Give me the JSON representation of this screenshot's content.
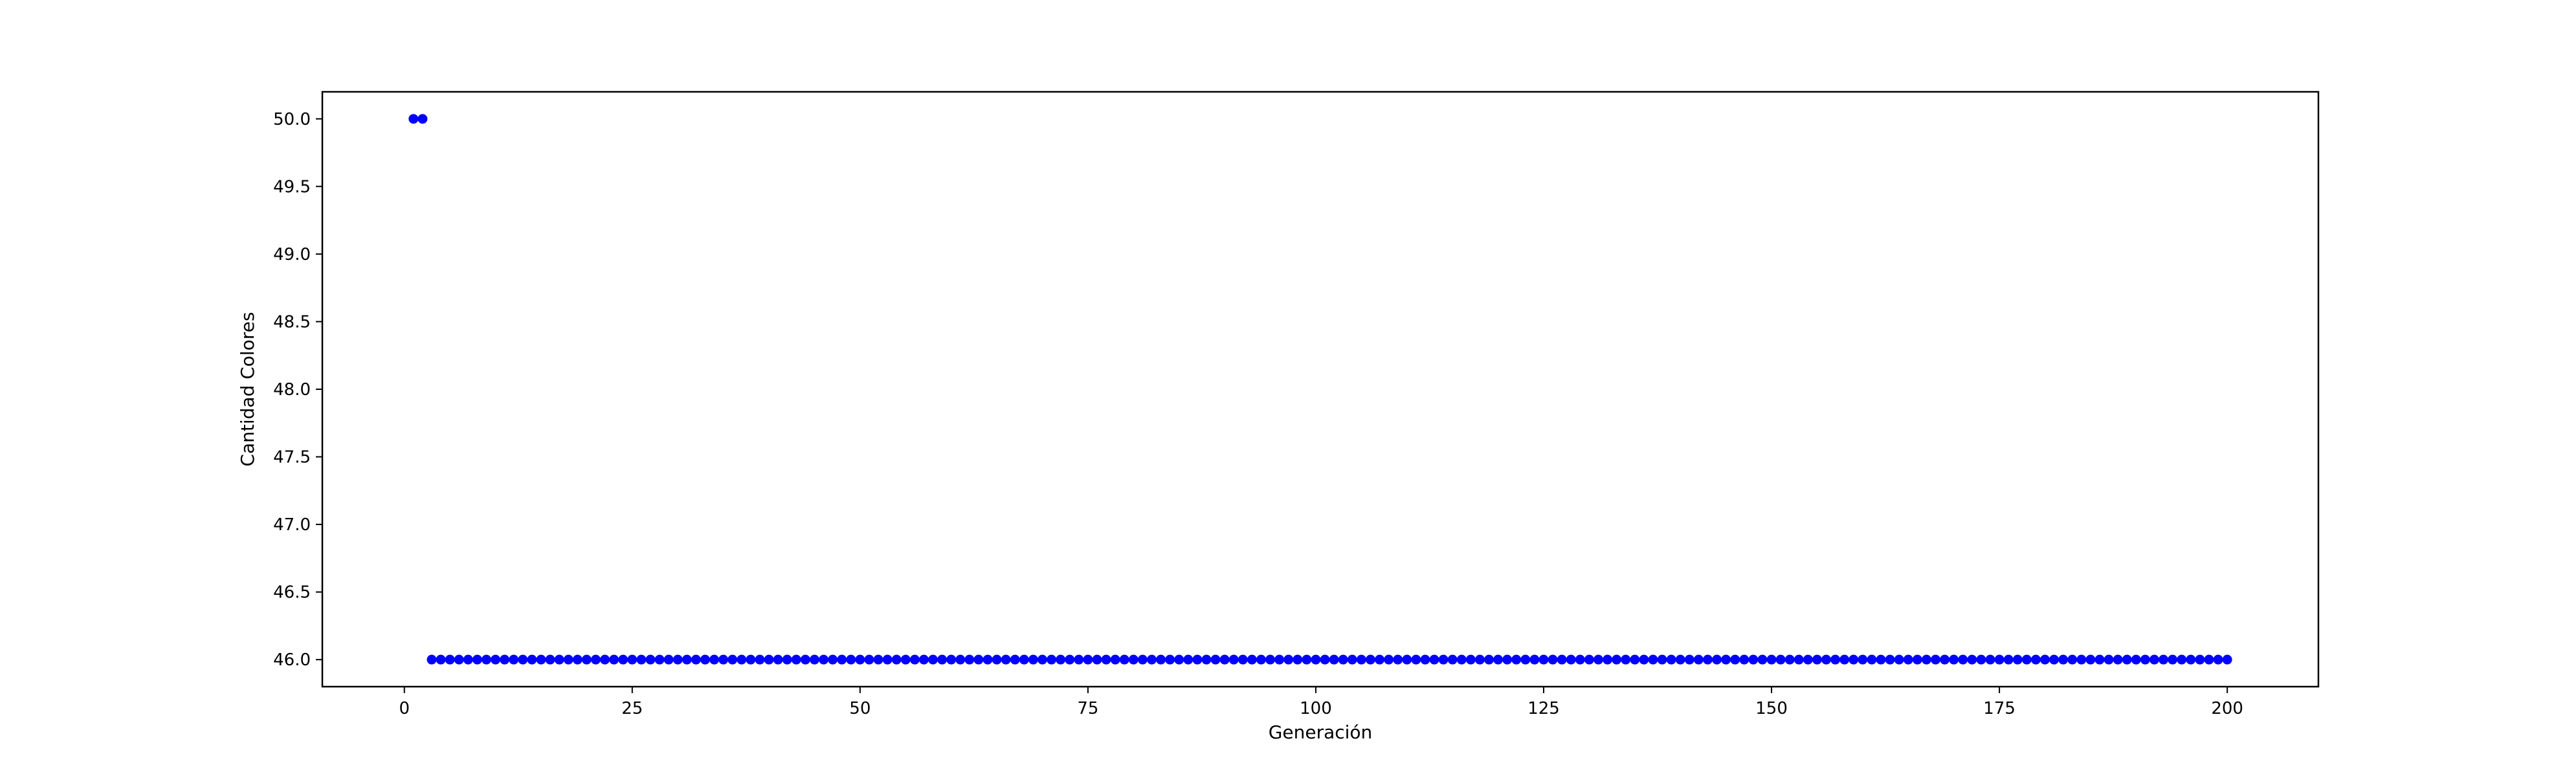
{
  "chart_data": {
    "type": "scatter",
    "xlabel": "Generación",
    "ylabel": "Cantidad Colores",
    "xlim": [
      -9,
      210
    ],
    "ylim": [
      45.8,
      50.2
    ],
    "x_ticks": [
      0,
      25,
      50,
      75,
      100,
      125,
      150,
      175,
      200
    ],
    "x_tick_labels": [
      "0",
      "25",
      "50",
      "75",
      "100",
      "125",
      "150",
      "175",
      "200"
    ],
    "y_ticks": [
      46.0,
      46.5,
      47.0,
      47.5,
      48.0,
      48.5,
      49.0,
      49.5,
      50.0
    ],
    "y_tick_labels": [
      "46.0",
      "46.5",
      "47.0",
      "47.5",
      "48.0",
      "48.5",
      "49.0",
      "49.5",
      "50.0"
    ],
    "grid": false,
    "marker_color": "#0000ff",
    "series": [
      {
        "segments": [
          {
            "x_start": 1,
            "x_end": 2,
            "y": 50
          },
          {
            "x_start": 3,
            "x_end": 200,
            "y": 46
          }
        ]
      }
    ]
  }
}
